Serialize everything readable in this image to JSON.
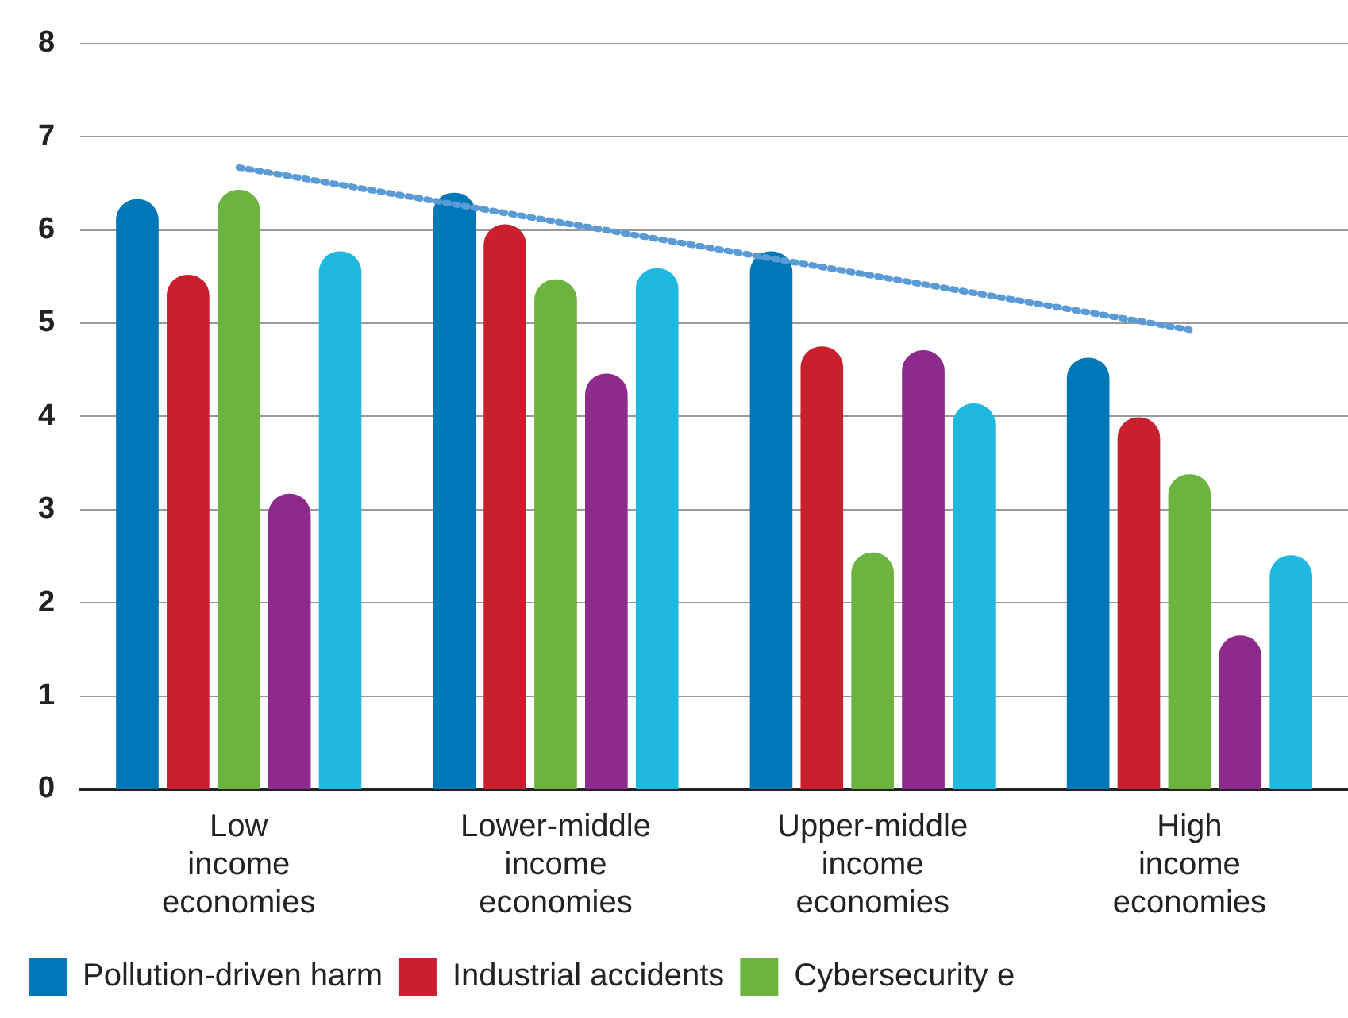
{
  "chart_data": {
    "type": "bar",
    "categories": [
      "Low income economies",
      "Lower-middle income economies",
      "Upper-middle income economies",
      "High income economies"
    ],
    "series": [
      {
        "name": "Pollution-driven harm",
        "color": "#0077b6",
        "values": [
          6.33,
          6.4,
          5.77,
          4.63
        ]
      },
      {
        "name": "Industrial accidents",
        "color": "#c8202f",
        "values": [
          5.52,
          6.06,
          4.75,
          3.99
        ]
      },
      {
        "name": "Cybersecurity e",
        "color": "#6db33f",
        "values": [
          6.43,
          5.47,
          2.54,
          3.38
        ]
      },
      {
        "color": "#8e2a8c",
        "values": [
          3.17,
          4.46,
          4.71,
          1.65
        ]
      },
      {
        "color": "#1fb8de",
        "values": [
          5.77,
          5.59,
          4.14,
          2.51
        ]
      },
      {
        "type": "line",
        "color": "#5b9bd5",
        "line_style": "dotted",
        "marker": "none",
        "values": [
          6.67,
          6.09,
          5.51,
          4.93
        ]
      }
    ],
    "ylim": [
      0,
      8
    ],
    "yticks": [
      0,
      1,
      2,
      3,
      4,
      5,
      6,
      7,
      8
    ],
    "grid": "y",
    "legend": "bottom"
  }
}
